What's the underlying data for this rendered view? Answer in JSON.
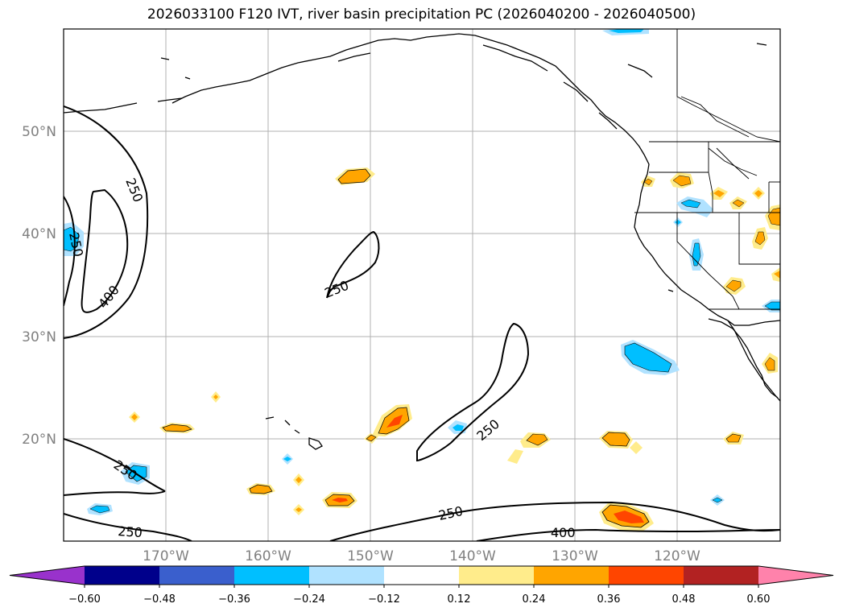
{
  "title": "2026033100 F120 IVT, river basin precipitation PC (2026040200 - 2026040500)",
  "lat_labels": [
    "50°N",
    "40°N",
    "30°N",
    "20°N"
  ],
  "lon_labels": [
    "170°W",
    "160°W",
    "150°W",
    "140°W",
    "130°W",
    "120°W"
  ],
  "contour_labels": [
    "250",
    "250",
    "400",
    "250",
    "250",
    "250",
    "250",
    "250",
    "400"
  ],
  "colorbar": {
    "colors": [
      "#9932cc",
      "#00008b",
      "#3a5fcd",
      "#00bfff",
      "#b0e2ff",
      "#ffffff",
      "#ffec8b",
      "#ffa500",
      "#ff4500",
      "#b22222",
      "#ff82ab"
    ],
    "ticks": [
      "−0.60",
      "−0.48",
      "−0.36",
      "−0.24",
      "−0.12",
      "0.12",
      "0.24",
      "0.36",
      "0.48",
      "0.60"
    ]
  }
}
